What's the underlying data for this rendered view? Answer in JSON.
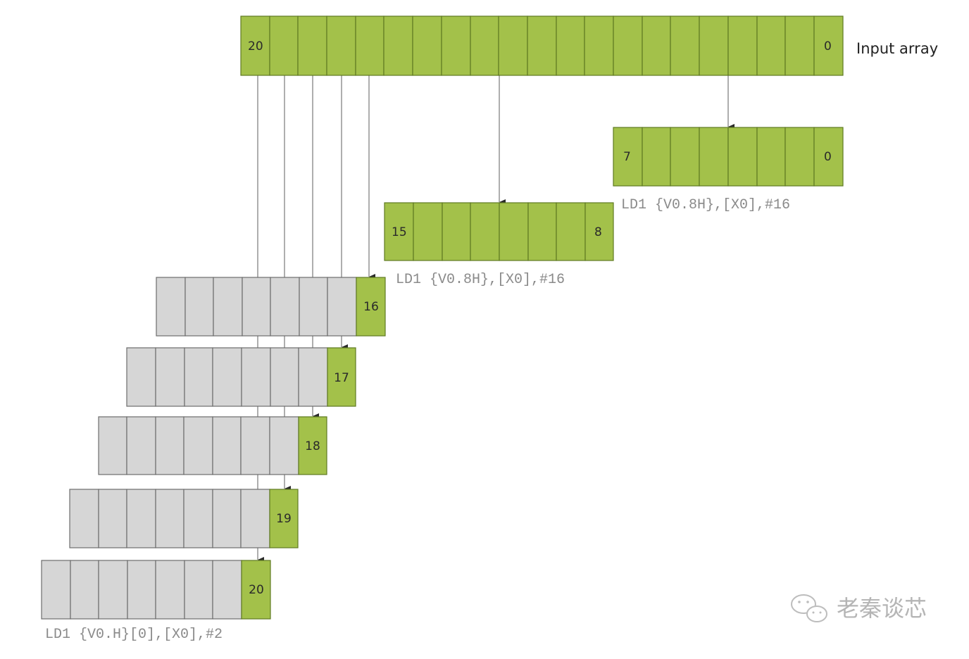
{
  "input_array": {
    "label": "Input array",
    "first_index": "20",
    "last_index": "0"
  },
  "load_blocks": [
    {
      "first_index": "7",
      "last_index": "0",
      "instruction": "LD1 {V0.8H},[X0],#16"
    },
    {
      "first_index": "15",
      "last_index": "8",
      "instruction": "LD1 {V0.8H},[X0],#16"
    }
  ],
  "lane_loads": [
    {
      "value": "16"
    },
    {
      "value": "17"
    },
    {
      "value": "18"
    },
    {
      "value": "19"
    },
    {
      "value": "20"
    }
  ],
  "lane_instruction": "LD1 {V0.H}[0],[X0],#2",
  "watermark": {
    "text": "老秦谈芯",
    "icon": "wechat-icon"
  },
  "colors": {
    "loaded": "#a3c14a",
    "unloaded": "#d6d6d6",
    "arrow": "#8c8c8c"
  }
}
